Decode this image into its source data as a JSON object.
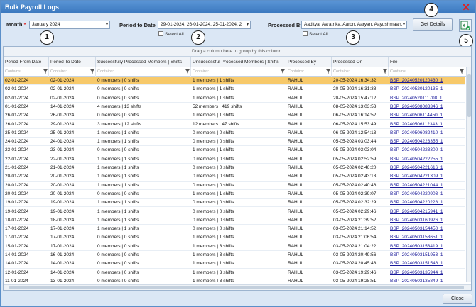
{
  "window": {
    "title": "Bulk Payroll Logs"
  },
  "filters": {
    "month_label": "Month",
    "month_required": "*",
    "month_value": "January 2024",
    "period_label": "Period to Date",
    "period_value": "29-01-2024, 26-01-2024, 25-01-2024, 2",
    "period_select_all": "Select All",
    "processed_by_label": "Processed By",
    "processed_by_value": "Aaditya, Aaratrika, Aaron, Aaryan, Aayushmaan,",
    "processed_by_select_all": "Select All",
    "get_details_label": "Get Details"
  },
  "callouts": [
    "1",
    "2",
    "3",
    "4",
    "5"
  ],
  "grid": {
    "group_hint": "Drag a column here to group by this column.",
    "filter_placeholder": "Contains:",
    "columns": [
      "Period From Date",
      "Period To Date",
      "Successfully Processed Members | Shifts",
      "Unsuccessful Processed Members | Shifts",
      "Processed By",
      "Processed On",
      "File"
    ],
    "rows": [
      [
        "02-01-2024",
        "02-01-2024",
        "0 members | 0 shifts",
        "1 members | 1 shifts",
        "RAHUL",
        "20-05-2024 16:34:32",
        "BSP_20240520120430_1"
      ],
      [
        "02-01-2024",
        "02-01-2024",
        "0 members | 0 shifts",
        "1 members | 1 shifts",
        "RAHUL",
        "20-05-2024 16:31:38",
        "BSP_20240520120135_1"
      ],
      [
        "02-01-2024",
        "02-01-2024",
        "0 members | 0 shifts",
        "1 members | 1 shifts",
        "RAHUL",
        "20-05-2024 15:47:12",
        "BSP_20240520111708_1"
      ],
      [
        "01-01-2024",
        "14-01-2024",
        "4 members | 13 shifts",
        "52 members | 419 shifts",
        "RAHUL",
        "08-05-2024 13:03:53",
        "BSP_20240508083346_1"
      ],
      [
        "26-01-2024",
        "26-01-2024",
        "0 members | 0 shifts",
        "1 members | 1 shifts",
        "RAHUL",
        "06-05-2024 16:14:52",
        "BSP_20240506114450_1"
      ],
      [
        "26-01-2024",
        "29-01-2024",
        "3 members | 12 shifts",
        "12 members | 47 shifts",
        "RAHUL",
        "06-05-2024 15:53:49",
        "BSP_20240506112343_1"
      ],
      [
        "25-01-2024",
        "25-01-2024",
        "1 members | 1 shifts",
        "0 members | 0 shifts",
        "RAHUL",
        "06-05-2024 12:54:13",
        "BSP_20240506082410_1"
      ],
      [
        "24-01-2024",
        "24-01-2024",
        "1 members | 1 shifts",
        "0 members | 0 shifts",
        "RAHUL",
        "05-05-2024 03:03:44",
        "BSP_20240504223355_1"
      ],
      [
        "23-01-2024",
        "23-01-2024",
        "0 members | 0 shifts",
        "1 members | 1 shifts",
        "RAHUL",
        "05-05-2024 03:03:04",
        "BSP_20240504223300_1"
      ],
      [
        "22-01-2024",
        "22-01-2024",
        "1 members | 1 shifts",
        "0 members | 0 shifts",
        "RAHUL",
        "05-05-2024 02:52:59",
        "BSP_20240504222255_1"
      ],
      [
        "21-01-2024",
        "21-01-2024",
        "1 members | 1 shifts",
        "0 members | 0 shifts",
        "RAHUL",
        "05-05-2024 02:46:20",
        "BSP_20240504221616_1"
      ],
      [
        "20-01-2024",
        "20-01-2024",
        "1 members | 1 shifts",
        "0 members | 0 shifts",
        "RAHUL",
        "05-05-2024 02:43:13",
        "BSP_20240504221309_1"
      ],
      [
        "20-01-2024",
        "20-01-2024",
        "1 members | 1 shifts",
        "0 members | 0 shifts",
        "RAHUL",
        "05-05-2024 02:40:46",
        "BSP_20240504221044_1"
      ],
      [
        "20-01-2024",
        "20-01-2024",
        "0 members | 0 shifts",
        "1 members | 1 shifts",
        "RAHUL",
        "05-05-2024 02:39:07",
        "BSP_20240504220903_1"
      ],
      [
        "19-01-2024",
        "19-01-2024",
        "1 members | 1 shifts",
        "0 members | 0 shifts",
        "RAHUL",
        "05-05-2024 02:32:29",
        "BSP_20240504220228_1"
      ],
      [
        "19-01-2024",
        "19-01-2024",
        "1 members | 1 shifts",
        "0 members | 0 shifts",
        "RAHUL",
        "05-05-2024 02:29:46",
        "BSP_20240504215941_1"
      ],
      [
        "18-01-2024",
        "18-01-2024",
        "1 members | 1 shifts",
        "0 members | 0 shifts",
        "RAHUL",
        "03-05-2024 21:39:52",
        "BSP_20240503160926_1"
      ],
      [
        "17-01-2024",
        "17-01-2024",
        "1 members | 1 shifts",
        "0 members | 0 shifts",
        "RAHUL",
        "03-05-2024 21:14:52",
        "BSP_20240503154450_1"
      ],
      [
        "17-01-2024",
        "17-01-2024",
        "0 members | 0 shifts",
        "1 members | 1 shifts",
        "RAHUL",
        "03-05-2024 21:06:54",
        "BSP_20240503153651_1"
      ],
      [
        "15-01-2024",
        "17-01-2024",
        "0 members | 0 shifts",
        "1 members | 3 shifts",
        "RAHUL",
        "03-05-2024 21:04:22",
        "BSP_20240503153419_1"
      ],
      [
        "14-01-2024",
        "16-01-2024",
        "0 members | 0 shifts",
        "1 members | 3 shifts",
        "RAHUL",
        "03-05-2024 20:49:56",
        "BSP_20240503151953_1"
      ],
      [
        "14-01-2024",
        "14-01-2024",
        "0 members | 0 shifts",
        "1 members | 1 shifts",
        "RAHUL",
        "03-05-2024 20:45:48",
        "BSP_20240503151546_1"
      ],
      [
        "12-01-2024",
        "14-01-2024",
        "0 members | 0 shifts",
        "1 members | 3 shifts",
        "RAHUL",
        "03-05-2024 19:29:46",
        "BSP_20240503135944_1"
      ],
      [
        "11-01-2024",
        "13-01-2024",
        "0 members | 0 shifts",
        "1 members | 3 shifts",
        "RAHUL",
        "03-05-2024 19:28:51",
        "BSP_20240503135849_1"
      ]
    ]
  },
  "footer": {
    "close_label": "Close"
  },
  "colors": {
    "title_bar": "#3c79bf",
    "selected_row": "#f7c96a",
    "close_icon": "#e02020",
    "excel_icon": "#1e7b3c"
  }
}
